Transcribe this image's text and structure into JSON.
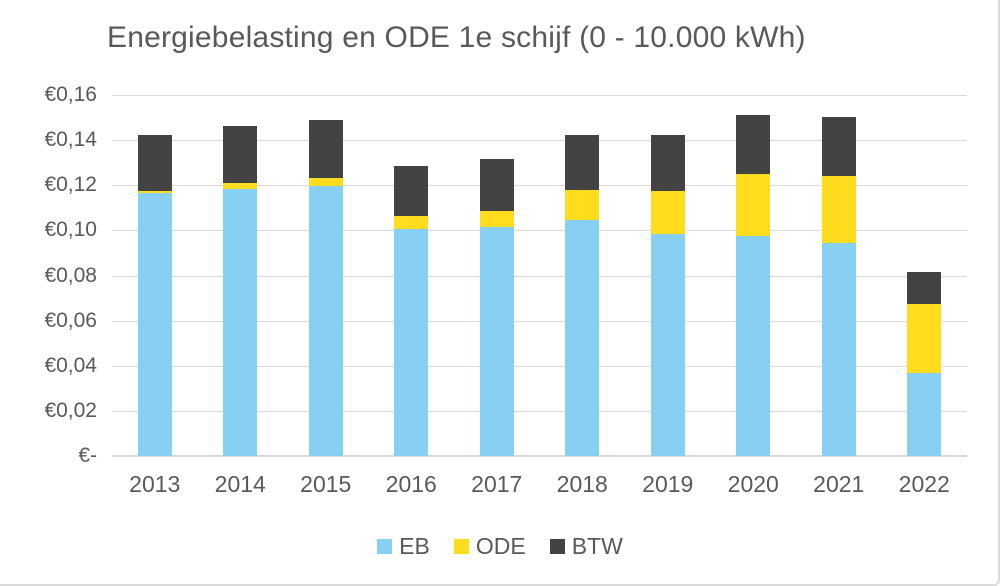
{
  "page": {
    "title": "Energiebelasting en ODE 1e schijf (0 - 10.000 kWh)"
  },
  "chart_data": {
    "type": "bar",
    "stacked": true,
    "title": "Energiebelasting en ODE 1e schijf (0 - 10.000 kWh)",
    "categories": [
      "2013",
      "2014",
      "2015",
      "2016",
      "2017",
      "2018",
      "2019",
      "2020",
      "2021",
      "2022"
    ],
    "series": [
      {
        "name": "EB",
        "color": "#87CFF3",
        "values": [
          0.1165,
          0.1185,
          0.1196,
          0.1007,
          0.1013,
          0.1046,
          0.0986,
          0.0977,
          0.0943,
          0.0368
        ]
      },
      {
        "name": "ODE",
        "color": "#FFDD1E",
        "values": [
          0.0011,
          0.0023,
          0.0036,
          0.0056,
          0.0074,
          0.0132,
          0.0189,
          0.0273,
          0.03,
          0.0305
        ]
      },
      {
        "name": "BTW",
        "color": "#434343",
        "values": [
          0.0247,
          0.0254,
          0.0259,
          0.0223,
          0.0228,
          0.0247,
          0.0247,
          0.0263,
          0.0261,
          0.0141
        ]
      }
    ],
    "totals": [
      0.1423,
      0.1462,
      0.1491,
      0.1286,
      0.1315,
      0.1425,
      0.1422,
      0.1513,
      0.1504,
      0.0814
    ],
    "xlabel": "",
    "ylabel": "",
    "ylim": [
      0,
      0.16
    ],
    "ytick_step": 0.02,
    "ytick_labels": [
      "€-",
      "€0,02",
      "€0,04",
      "€0,06",
      "€0,08",
      "€0,10",
      "€0,12",
      "€0,14",
      "€0,16"
    ],
    "grid": "horizontal",
    "legend_position": "bottom",
    "colors": {
      "grid": "#d9d9d9",
      "axis_text": "#595959",
      "title_text": "#595959",
      "background": "#ffffff"
    }
  }
}
